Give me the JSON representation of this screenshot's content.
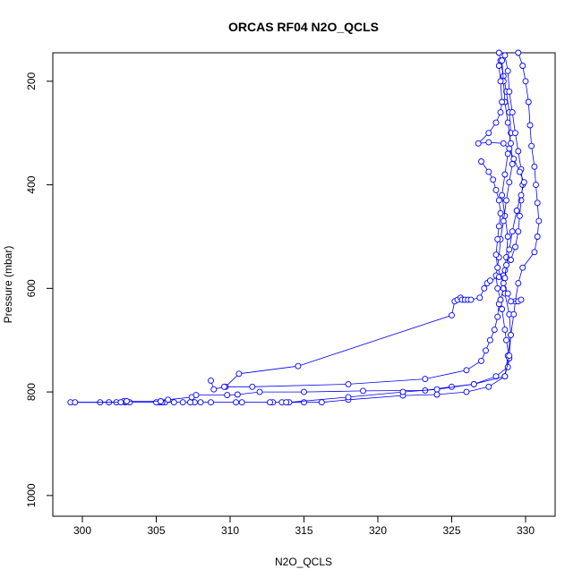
{
  "chart_data": {
    "type": "scatter",
    "title": "ORCAS RF04 N2O_QCLS",
    "xlabel": "N2O_QCLS",
    "ylabel": "Pressure (mbar)",
    "xlim": [
      298,
      332
    ],
    "ylim": [
      1040,
      145
    ],
    "y_reversed": true,
    "x_ticks": [
      300,
      305,
      310,
      315,
      320,
      325,
      330
    ],
    "y_ticks": [
      200,
      400,
      600,
      800,
      1000
    ],
    "line_color": "#0000ff",
    "marker": "open-circle",
    "series": [
      {
        "values": [
          [
            328.2,
            145
          ],
          [
            328.3,
            160
          ],
          [
            328.5,
            190
          ],
          [
            328.7,
            220
          ],
          [
            328.9,
            260
          ],
          [
            329.0,
            300
          ],
          [
            328.8,
            340
          ],
          [
            328.6,
            380
          ],
          [
            328.4,
            420
          ],
          [
            328.6,
            460
          ],
          [
            328.8,
            500
          ],
          [
            328.7,
            540
          ],
          [
            328.5,
            575
          ],
          [
            328.6,
            610
          ],
          [
            328.9,
            650
          ],
          [
            329.0,
            690
          ],
          [
            328.8,
            730
          ],
          [
            328.6,
            770
          ],
          [
            327.5,
            790
          ],
          [
            326.0,
            800
          ],
          [
            324.0,
            805
          ],
          [
            321.7,
            807
          ],
          [
            318.0,
            815
          ],
          [
            316.2,
            820
          ],
          [
            315.0,
            820
          ],
          [
            313.5,
            820
          ],
          [
            312.9,
            820
          ],
          [
            312.7,
            820
          ],
          [
            310.8,
            820
          ],
          [
            310.4,
            820
          ],
          [
            308.7,
            820
          ],
          [
            308.0,
            820
          ],
          [
            307.6,
            820
          ],
          [
            307.3,
            820
          ],
          [
            306.8,
            820
          ],
          [
            306.2,
            820
          ],
          [
            305.6,
            820
          ],
          [
            305.4,
            820
          ],
          [
            305.2,
            820
          ],
          [
            305.0,
            820
          ],
          [
            303.2,
            820
          ],
          [
            302.9,
            820
          ],
          [
            302.8,
            818
          ],
          [
            302.3,
            820
          ],
          [
            301.8,
            820
          ],
          [
            301.2,
            820
          ],
          [
            299.2,
            820
          ]
        ]
      },
      {
        "values": [
          [
            299.5,
            820
          ],
          [
            302.6,
            820
          ],
          [
            303.0,
            818
          ],
          [
            305.3,
            818
          ],
          [
            305.8,
            815
          ],
          [
            307.4,
            810
          ],
          [
            307.7,
            806
          ],
          [
            309.8,
            806
          ],
          [
            310.5,
            805
          ],
          [
            312.0,
            800
          ],
          [
            315.0,
            800
          ],
          [
            319.0,
            798
          ],
          [
            323.2,
            797
          ],
          [
            325.0,
            790
          ],
          [
            326.5,
            785
          ],
          [
            328.0,
            770
          ],
          [
            328.8,
            752
          ],
          [
            328.9,
            735
          ],
          [
            328.7,
            700
          ],
          [
            328.6,
            680
          ],
          [
            328.4,
            640
          ],
          [
            328.3,
            622
          ],
          [
            328.1,
            600
          ],
          [
            328.0,
            575
          ],
          [
            328.2,
            540
          ],
          [
            328.3,
            505
          ],
          [
            328.5,
            470
          ],
          [
            328.7,
            430
          ],
          [
            328.9,
            395
          ],
          [
            329.1,
            360
          ],
          [
            329.0,
            320
          ],
          [
            328.8,
            280
          ],
          [
            328.6,
            240
          ],
          [
            328.5,
            200
          ],
          [
            328.4,
            160
          ]
        ]
      },
      {
        "values": [
          [
            329.5,
            145
          ],
          [
            329.8,
            170
          ],
          [
            330.0,
            200
          ],
          [
            330.2,
            240
          ],
          [
            330.3,
            285
          ],
          [
            330.4,
            325
          ],
          [
            330.6,
            365
          ],
          [
            330.7,
            400
          ],
          [
            330.8,
            435
          ],
          [
            330.9,
            470
          ],
          [
            330.8,
            500
          ],
          [
            330.6,
            530
          ],
          [
            329.8,
            560
          ],
          [
            329.5,
            590
          ],
          [
            329.3,
            625
          ],
          [
            329.2,
            650
          ],
          [
            329.0,
            690
          ],
          [
            328.9,
            730
          ],
          [
            328.6,
            770
          ],
          [
            326.5,
            785
          ],
          [
            324.0,
            795
          ],
          [
            321.7,
            800
          ],
          [
            318.0,
            810
          ],
          [
            314.0,
            820
          ],
          [
            313.8,
            820
          ]
        ]
      },
      {
        "values": [
          [
            309.7,
            790
          ],
          [
            310.6,
            765
          ],
          [
            314.6,
            750
          ],
          [
            325.0,
            652
          ],
          [
            325.2,
            625
          ],
          [
            325.4,
            622
          ],
          [
            325.6,
            618
          ],
          [
            325.7,
            622
          ],
          [
            325.9,
            622
          ],
          [
            326.1,
            622
          ],
          [
            326.3,
            622
          ],
          [
            326.9,
            618
          ],
          [
            327.2,
            600
          ],
          [
            327.4,
            590
          ],
          [
            327.6,
            585
          ],
          [
            328.2,
            578
          ],
          [
            328.6,
            565
          ],
          [
            329.0,
            545
          ],
          [
            329.3,
            520
          ],
          [
            329.5,
            490
          ],
          [
            329.6,
            460
          ],
          [
            329.7,
            430
          ],
          [
            329.8,
            400
          ],
          [
            329.7,
            370
          ],
          [
            329.5,
            335
          ],
          [
            329.3,
            300
          ],
          [
            329.1,
            260
          ],
          [
            328.9,
            220
          ],
          [
            328.8,
            180
          ],
          [
            328.6,
            150
          ]
        ]
      },
      {
        "values": [
          [
            308.7,
            778
          ],
          [
            308.9,
            795
          ],
          [
            309.6,
            790
          ],
          [
            311.5,
            790
          ],
          [
            318.0,
            785
          ],
          [
            323.2,
            775
          ],
          [
            326.0,
            758
          ],
          [
            327.0,
            740
          ],
          [
            327.3,
            720
          ],
          [
            327.6,
            700
          ],
          [
            327.9,
            680
          ],
          [
            328.1,
            655
          ],
          [
            328.2,
            630
          ],
          [
            328.3,
            622
          ],
          [
            328.5,
            600
          ],
          [
            328.6,
            580
          ],
          [
            328.7,
            555
          ],
          [
            328.9,
            525
          ],
          [
            329.1,
            490
          ],
          [
            329.4,
            450
          ],
          [
            329.7,
            420
          ],
          [
            329.9,
            395
          ],
          [
            329.6,
            375
          ],
          [
            329.2,
            350
          ],
          [
            328.9,
            330
          ],
          [
            328.5,
            320
          ],
          [
            327.5,
            318
          ],
          [
            326.8,
            320
          ],
          [
            327.5,
            300
          ],
          [
            328.0,
            280
          ],
          [
            328.3,
            260
          ],
          [
            328.4,
            240
          ],
          [
            328.3,
            200
          ],
          [
            328.2,
            170
          ]
        ]
      },
      {
        "values": [
          [
            327.0,
            355
          ],
          [
            327.5,
            375
          ],
          [
            327.8,
            390
          ],
          [
            328.0,
            410
          ],
          [
            328.2,
            430
          ],
          [
            328.3,
            455
          ],
          [
            328.2,
            480
          ],
          [
            328.1,
            505
          ],
          [
            328.0,
            535
          ],
          [
            328.1,
            560
          ],
          [
            328.5,
            590
          ],
          [
            328.8,
            610
          ],
          [
            329.0,
            625
          ],
          [
            329.5,
            625
          ],
          [
            329.7,
            622
          ]
        ]
      }
    ]
  }
}
